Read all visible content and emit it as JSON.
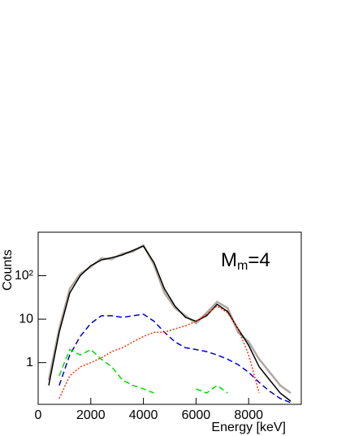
{
  "chart_data": {
    "type": "line",
    "x_label": "Energy [keV]",
    "y_label": "Counts",
    "annotation": {
      "base": "M",
      "sub": "m",
      "rest": "=4"
    },
    "x": [
      400,
      800,
      1200,
      1600,
      2000,
      2400,
      2800,
      3200,
      3600,
      4000,
      4400,
      4800,
      5200,
      5600,
      6000,
      6400,
      6800,
      7200,
      7600,
      8000,
      8400,
      8800,
      9200,
      9600
    ],
    "series": [
      {
        "color": "#b0a8a0",
        "style": "solid",
        "width": 2.5,
        "values": [
          0.4,
          6,
          50,
          110,
          160,
          250,
          240,
          320,
          360,
          500,
          180,
          40,
          18,
          12,
          8,
          14,
          25,
          18,
          5,
          3,
          1.2,
          0.6,
          0.3,
          0.2
        ]
      },
      {
        "color": "#000000",
        "style": "solid",
        "width": 1.5,
        "values": [
          0.3,
          5,
          40,
          100,
          170,
          230,
          260,
          300,
          380,
          480,
          200,
          50,
          20,
          11,
          9,
          12,
          22,
          15,
          6,
          2.5,
          0.8,
          0.4,
          0.2,
          0.13
        ]
      },
      {
        "color": "#0000cc",
        "style": "dashed",
        "width": 1.5,
        "values": [
          null,
          0.3,
          1.5,
          4,
          8,
          12,
          12,
          11,
          12,
          13,
          9,
          5,
          3,
          2.2,
          2,
          1.8,
          1.5,
          1.2,
          0.9,
          0.6,
          0.35,
          0.22,
          0.15,
          0.12
        ]
      },
      {
        "color": "#ff3300",
        "style": "dotted",
        "width": 1.5,
        "values": [
          null,
          0.15,
          0.5,
          0.8,
          1,
          1.3,
          1.8,
          2.2,
          3,
          4,
          5,
          5,
          6,
          7,
          9,
          13,
          20,
          14,
          6,
          1.5,
          0.2,
          null,
          null,
          null
        ]
      },
      {
        "color": "#00dd00",
        "style": "dashed",
        "width": 1.5,
        "values": [
          null,
          0.5,
          2,
          1.5,
          2,
          1.2,
          0.8,
          0.4,
          0.3,
          0.25,
          0.2,
          null,
          null,
          null,
          0.25,
          0.2,
          0.3,
          0.2,
          null,
          null,
          null,
          null,
          null,
          null
        ]
      }
    ],
    "xlim": [
      0,
      10000
    ],
    "xticks": [
      0,
      2000,
      4000,
      6000,
      8000
    ],
    "ylim": [
      0.11,
      1000
    ],
    "log_y": true,
    "yticks": [
      {
        "value": 100,
        "label": "10²"
      },
      10,
      1
    ]
  }
}
